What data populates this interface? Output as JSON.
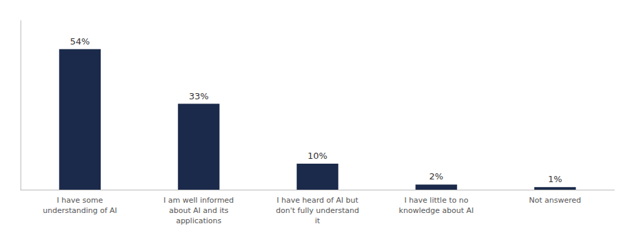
{
  "chart_data": {
    "type": "bar",
    "categories": [
      "I have some\nunderstanding of AI",
      "I am well informed\nabout AI and its\napplications",
      "I have heard of AI but\ndon't fully understand\nit",
      "I have little to no\nknowledge about AI",
      "Not answered"
    ],
    "values": [
      54,
      33,
      10,
      2,
      1
    ],
    "value_labels": [
      "54%",
      "33%",
      "10%",
      "2%",
      "1%"
    ],
    "color": "#1b2a4a",
    "ylim": [
      0,
      65
    ],
    "grid": false,
    "data_labels": true,
    "tick_labels": "x"
  }
}
